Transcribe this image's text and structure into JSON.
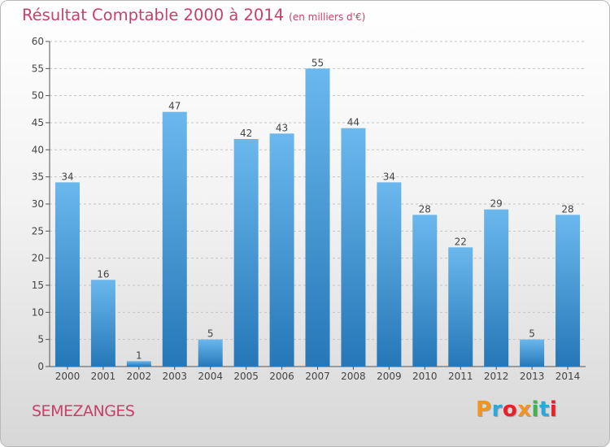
{
  "header": {
    "title": "Résultat Comptable 2000 à 2014",
    "unit": "(en milliers d'€)"
  },
  "footer": {
    "commune": "SEMEZANGES",
    "logo_text": "Proxiti"
  },
  "colors": {
    "title": "#c8406a",
    "bar_top": "#6bb8ee",
    "bar_bottom": "#2577b7",
    "logo_letters": [
      "#f3941e",
      "#2aa8e0",
      "#e8202a",
      "#f3941e",
      "#3db54a",
      "#2aa8e0",
      "#e8202a"
    ]
  },
  "chart_data": {
    "type": "bar",
    "categories": [
      "2000",
      "2001",
      "2002",
      "2003",
      "2004",
      "2005",
      "2006",
      "2007",
      "2008",
      "2009",
      "2010",
      "2011",
      "2012",
      "2013",
      "2014"
    ],
    "values": [
      34,
      16,
      1,
      47,
      5,
      42,
      43,
      55,
      44,
      34,
      28,
      22,
      29,
      5,
      28
    ],
    "ylim": [
      0,
      60
    ],
    "yticks": [
      0,
      5,
      10,
      15,
      20,
      25,
      30,
      35,
      40,
      45,
      50,
      55,
      60
    ],
    "grid": "horizontal dashed",
    "legend": "none"
  }
}
